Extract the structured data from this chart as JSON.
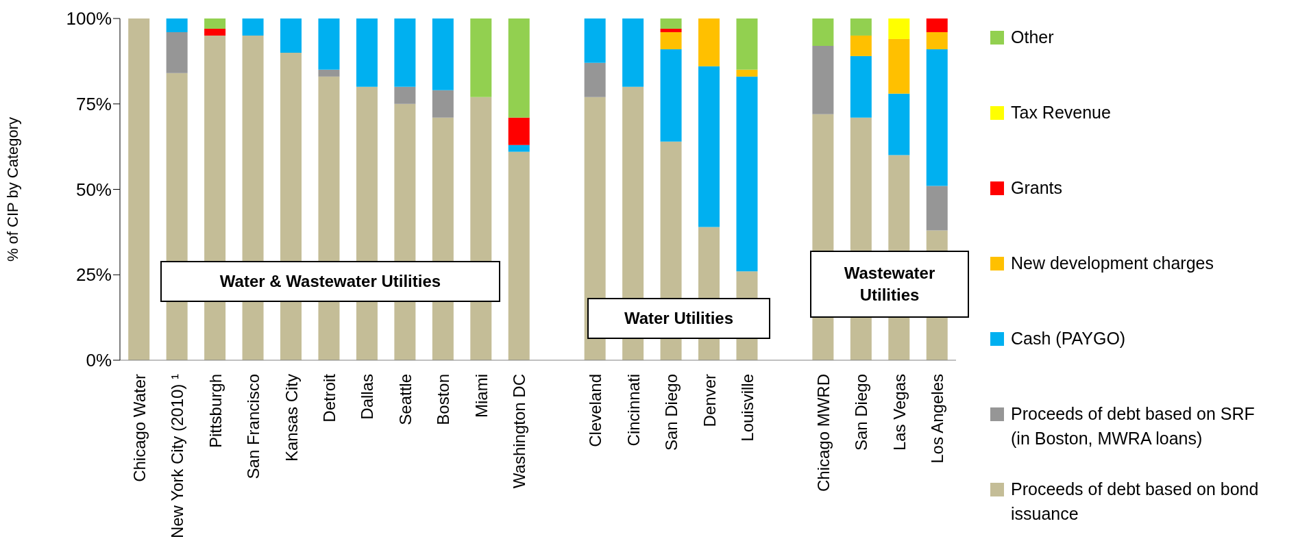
{
  "chart_data": {
    "type": "bar",
    "stacked": true,
    "ylabel": "% of CIP by Category",
    "categories": [
      "Chicago Water",
      "New York City (2010) ¹",
      "Pittsburgh",
      "San Francisco",
      "Kansas City",
      "Detroit",
      "Dallas",
      "Seattle",
      "Boston",
      "Miami",
      "Washington DC",
      null,
      "Cleveland",
      "Cincinnati",
      "San Diego",
      "Denver",
      "Louisville",
      null,
      "Chicago MWRD",
      "San Diego",
      "Las Vegas",
      "Los Angeles"
    ],
    "series": [
      {
        "name": "Proceeds of debt based on bond issuance",
        "color": "#c4bd97",
        "values": [
          100,
          84,
          95,
          95,
          90,
          83,
          80,
          75,
          71,
          77,
          61,
          null,
          77,
          80,
          64,
          39,
          26,
          null,
          72,
          71,
          60,
          38
        ]
      },
      {
        "name": "Proceeds of debt based on SRF (in Boston, MWRA loans)",
        "color": "#969696",
        "values": [
          0,
          12,
          0,
          0,
          0,
          2,
          0,
          5,
          8,
          0,
          0,
          null,
          10,
          0,
          0,
          0,
          0,
          null,
          20,
          0,
          0,
          13
        ]
      },
      {
        "name": "Cash (PAYGO)",
        "color": "#00b0f0",
        "values": [
          0,
          4,
          0,
          5,
          10,
          15,
          20,
          20,
          21,
          0,
          2,
          null,
          13,
          20,
          27,
          47,
          57,
          null,
          0,
          18,
          18,
          40
        ]
      },
      {
        "name": "New development charges",
        "color": "#ffc000",
        "values": [
          0,
          0,
          0,
          0,
          0,
          0,
          0,
          0,
          0,
          0,
          0,
          null,
          0,
          0,
          5,
          14,
          2,
          null,
          0,
          6,
          16,
          5
        ]
      },
      {
        "name": "Grants",
        "color": "#ff0000",
        "values": [
          0,
          0,
          2,
          0,
          0,
          0,
          0,
          0,
          0,
          0,
          8,
          null,
          0,
          0,
          1,
          0,
          0,
          null,
          0,
          0,
          0,
          4
        ]
      },
      {
        "name": "Tax Revenue",
        "color": "#ffff00",
        "values": [
          0,
          0,
          0,
          0,
          0,
          0,
          0,
          0,
          0,
          0,
          0,
          null,
          0,
          0,
          0,
          0,
          0,
          null,
          0,
          0,
          6,
          0
        ]
      },
      {
        "name": "Other",
        "color": "#92d050",
        "values": [
          0,
          0,
          3,
          0,
          0,
          0,
          0,
          0,
          0,
          23,
          29,
          null,
          0,
          0,
          3,
          0,
          15,
          null,
          8,
          5,
          0,
          0
        ]
      }
    ],
    "ylim": [
      0,
      100
    ],
    "yticks": [
      {
        "value": 0,
        "label": "0%"
      },
      {
        "value": 25,
        "label": "25%"
      },
      {
        "value": 50,
        "label": "50%"
      },
      {
        "value": 75,
        "label": "75%"
      },
      {
        "value": 100,
        "label": "100%"
      }
    ],
    "grid": false,
    "legend": "right",
    "annotations": [
      "Water & Wastewater Utilities",
      "Water Utilities",
      "Wastewater Utilities"
    ]
  }
}
